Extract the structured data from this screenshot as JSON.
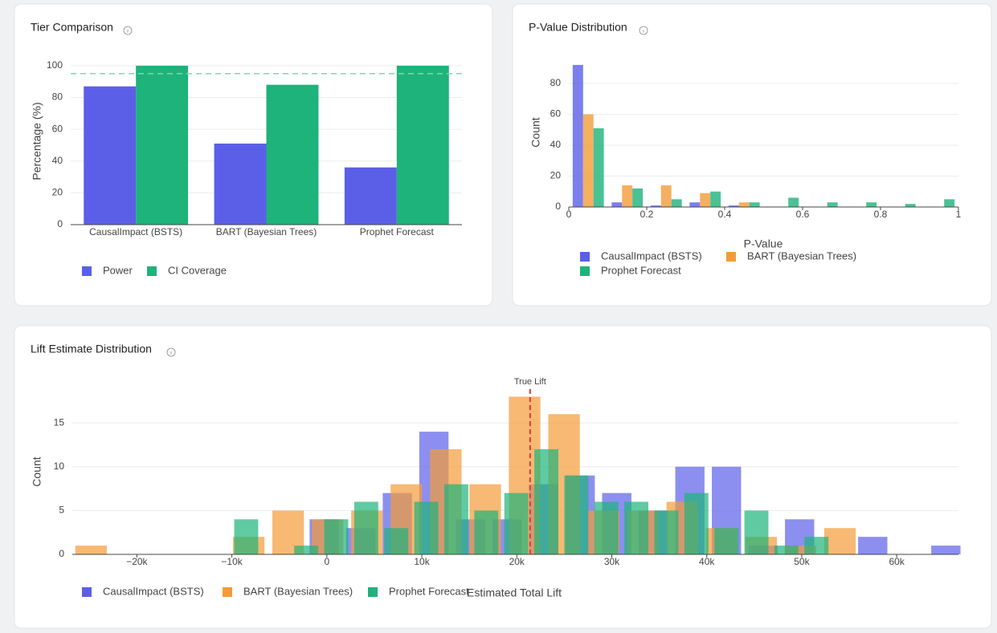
{
  "chart_data": [
    {
      "type": "bar",
      "title": "Tier Comparison",
      "ylabel": "Percentage (%)",
      "categories": [
        "CausalImpact (BSTS)",
        "BART (Bayesian Trees)",
        "Prophet Forecast"
      ],
      "series": [
        {
          "name": "Power",
          "color": "#5b5fe8",
          "values": [
            87,
            51,
            36
          ]
        },
        {
          "name": "CI Coverage",
          "color": "#1db37a",
          "values": [
            100,
            88,
            100
          ]
        }
      ],
      "ylim": [
        0,
        105
      ],
      "yticks": [
        0,
        20,
        40,
        60,
        80,
        100
      ],
      "grid": true,
      "reference_line": {
        "value": 95,
        "color": "#7fd6b5"
      }
    },
    {
      "type": "histogram",
      "barmode": "group",
      "title": "P-Value Distribution",
      "xlabel": "P-Value",
      "ylabel": "Count",
      "bins": [
        0,
        0.1,
        0.2,
        0.3,
        0.4,
        0.5,
        0.6,
        0.7,
        0.8,
        0.9,
        1
      ],
      "series": [
        {
          "name": "CausalImpact (BSTS)",
          "color": "#5b5fe8",
          "values": [
            92,
            3,
            1,
            3,
            1,
            0,
            0,
            0,
            0,
            0
          ]
        },
        {
          "name": "BART (Bayesian Trees)",
          "color": "#f39b38",
          "values": [
            60,
            14,
            14,
            9,
            3,
            0,
            0,
            0,
            0,
            0
          ]
        },
        {
          "name": "Prophet Forecast",
          "color": "#1db37a",
          "values": [
            51,
            12,
            5,
            10,
            3,
            6,
            3,
            3,
            2,
            5
          ]
        }
      ],
      "xlim": [
        0,
        1
      ],
      "xticks": [
        0,
        0.2,
        0.4,
        0.6,
        0.8,
        1
      ],
      "ylim": [
        0,
        93
      ],
      "yticks": [
        0,
        20,
        40,
        60,
        80
      ],
      "grid": true
    },
    {
      "type": "histogram",
      "barmode": "overlay",
      "title": "Lift Estimate Distribution",
      "xlabel": "Estimated Total Lift",
      "ylabel": "Count",
      "series": [
        {
          "name": "CausalImpact (BSTS)",
          "color": "#5b5fe8",
          "bins": [
            -2200,
            1650,
            5500,
            9350,
            13200,
            17050,
            20900,
            24750,
            28600,
            32450,
            36300,
            40150,
            44000,
            47850,
            51700,
            55550,
            59400,
            63250,
            67100
          ],
          "values": [
            4,
            3,
            7,
            14,
            4,
            4,
            8,
            9,
            7,
            5,
            10,
            10,
            1,
            4,
            0,
            2,
            0,
            1
          ]
        },
        {
          "name": "BART (Bayesian Trees)",
          "color": "#f39b38",
          "bins": [
            -26900,
            -22750,
            -18600,
            -14450,
            -10300,
            -6150,
            -2000,
            2150,
            6300,
            10450,
            14600,
            18750,
            22900,
            27050,
            31200,
            35350,
            39500,
            43650,
            47800,
            51950,
            56100
          ],
          "values": [
            1,
            0,
            0,
            0,
            2,
            5,
            4,
            5,
            8,
            12,
            8,
            18,
            16,
            5,
            5,
            6,
            3,
            2,
            1,
            3
          ]
        },
        {
          "name": "Prophet Forecast",
          "color": "#1db37a",
          "bins": [
            -10070,
            -6910,
            -3750,
            -590,
            2570,
            5730,
            8890,
            12050,
            15210,
            18370,
            21530,
            24690,
            27850,
            31010,
            34170,
            37330,
            40490,
            43650,
            46810,
            49970,
            53130
          ],
          "values": [
            4,
            0,
            1,
            4,
            6,
            3,
            6,
            8,
            5,
            7,
            12,
            9,
            6,
            6,
            5,
            7,
            3,
            5,
            1,
            2
          ]
        }
      ],
      "xlim": [
        -26800,
        66500
      ],
      "xticks": [
        {
          "value": -20000,
          "label": "−20k"
        },
        {
          "value": -10000,
          "label": "−10k"
        },
        0,
        {
          "value": 10000,
          "label": "10k"
        },
        {
          "value": 20000,
          "label": "20k"
        },
        {
          "value": 30000,
          "label": "30k"
        },
        {
          "value": 40000,
          "label": "40k"
        },
        {
          "value": 50000,
          "label": "50k"
        },
        {
          "value": 60000,
          "label": "60k"
        }
      ],
      "ylim": [
        0,
        19.5
      ],
      "yticks": [
        0,
        5,
        10,
        15
      ],
      "grid": true,
      "reference_line": {
        "value": 21400,
        "label": "True Lift",
        "color": "#e0393e"
      }
    }
  ]
}
